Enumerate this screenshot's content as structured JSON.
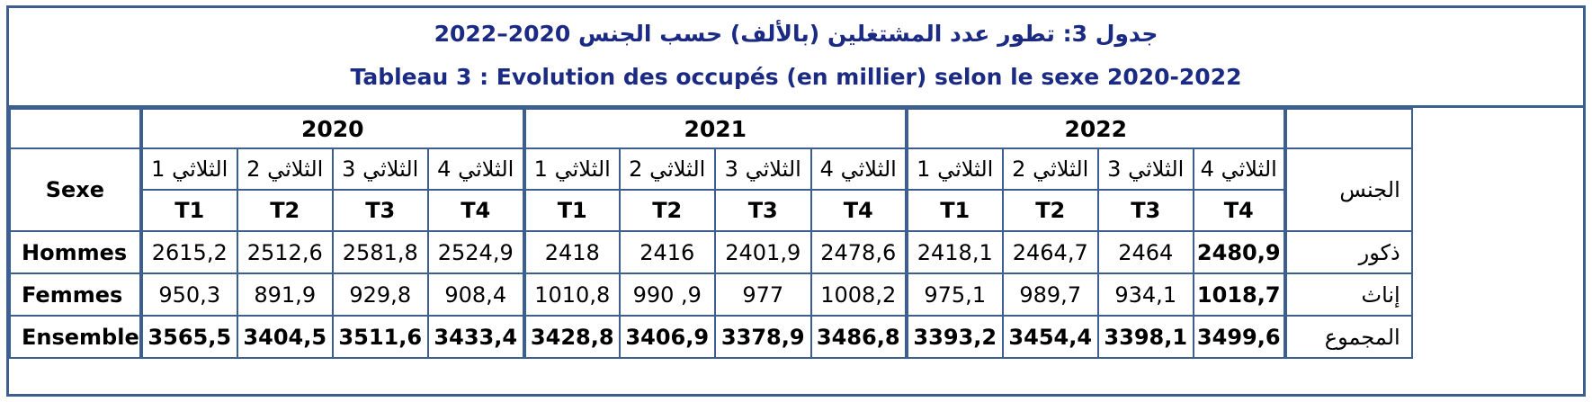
{
  "title": {
    "arabic": "جدول 3: تطور عدد المشتغلين (بالألف) حسب الجنس 2020–2022",
    "french": "Tableau 3 : Evolution des occupés (en millier) selon le sexe 2020-2022"
  },
  "header": {
    "sexe_label": "Sexe",
    "gender_label_ar": "الجنس",
    "years": [
      "2020",
      "2021",
      "2022"
    ],
    "quarters_ar": [
      "الثلاثي 1",
      "الثلاثي 2",
      "الثلاثي 3",
      "الثلاثي 4"
    ],
    "quarters_fr": [
      "T1",
      "T2",
      "T3",
      "T4"
    ]
  },
  "rows": [
    {
      "label_fr": "Hommes",
      "label_ar": "ذكور",
      "values": [
        "2615,2",
        "2512,6",
        "2581,8",
        "2524,9",
        "2418",
        "2416",
        "2401,9",
        "2478,6",
        "2418,1",
        "2464,7",
        "2464",
        "2480,9"
      ]
    },
    {
      "label_fr": "Femmes",
      "label_ar": "إناث",
      "values": [
        "950,3",
        "891,9",
        "929,8",
        "908,4",
        "1010,8",
        "990 ,9",
        "977",
        "1008,2",
        "975,1",
        "989,7",
        "934,1",
        "1018,7"
      ]
    },
    {
      "label_fr": "Ensemble",
      "label_ar": "المجموع",
      "values": [
        "3565,5",
        "3404,5",
        "3511,6",
        "3433,4",
        "3428,8",
        "3406,9",
        "3378,9",
        "3486,8",
        "3393,2",
        "3454,4",
        "3398,1",
        "3499,6"
      ]
    }
  ]
}
